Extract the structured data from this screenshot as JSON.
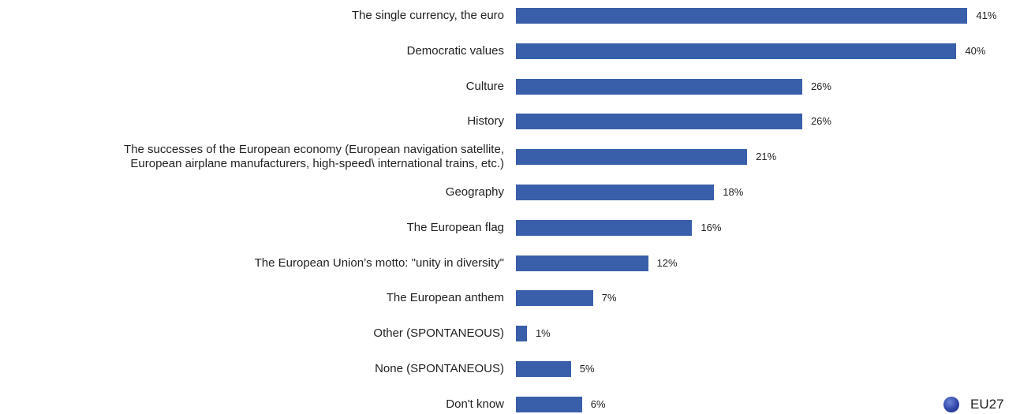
{
  "chart_data": {
    "type": "bar",
    "orientation": "horizontal",
    "categories": [
      "The single currency, the euro",
      "Democratic values",
      "Culture",
      "History",
      "The successes of the European economy (European navigation satellite, European airplane manufacturers, high-speed\\ international trains, etc.)",
      "Geography",
      "The European flag",
      "The European Union’s motto: \"unity in diversity\"",
      "The European anthem",
      "Other (SPONTANEOUS)",
      "None (SPONTANEOUS)",
      "Don't know"
    ],
    "series": [
      {
        "name": "EU27",
        "values": [
          41,
          40,
          26,
          26,
          21,
          18,
          16,
          12,
          7,
          1,
          5,
          6
        ],
        "labels": [
          "41%",
          "40%",
          "26%",
          "26%",
          "21%",
          "18%",
          "16%",
          "12%",
          "7%",
          "1%",
          "5%",
          "6%"
        ],
        "color": "#3a5faa"
      }
    ],
    "xlim": [
      0,
      41
    ],
    "grid": false,
    "legend_position": "bottom-right",
    "title": "",
    "xlabel": "",
    "ylabel": ""
  }
}
